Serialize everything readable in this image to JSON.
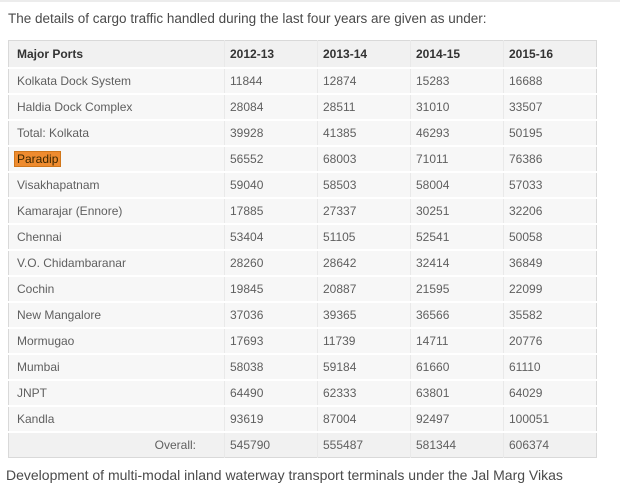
{
  "page": {
    "intro_text": "The details of cargo traffic handled during the last four years are given as under:",
    "outro_text": "Development of multi-modal inland waterway transport terminals under the Jal Marg Vikas"
  },
  "table": {
    "columns": [
      "Major Ports",
      "2012-13",
      "2013-14",
      "2014-15",
      "2015-16"
    ],
    "rows": [
      {
        "port": "Kolkata Dock System",
        "highlighted": false,
        "values": [
          "11844",
          "12874",
          "15283",
          "16688"
        ]
      },
      {
        "port": "Haldia Dock Complex",
        "highlighted": false,
        "values": [
          "28084",
          "28511",
          "31010",
          "33507"
        ]
      },
      {
        "port": "Total: Kolkata",
        "highlighted": false,
        "values": [
          "39928",
          "41385",
          "46293",
          "50195"
        ]
      },
      {
        "port": "Paradip",
        "highlighted": true,
        "values": [
          "56552",
          "68003",
          "71011",
          "76386"
        ]
      },
      {
        "port": "Visakhapatnam",
        "highlighted": false,
        "values": [
          "59040",
          "58503",
          "58004",
          "57033"
        ]
      },
      {
        "port": "Kamarajar (Ennore)",
        "highlighted": false,
        "values": [
          "17885",
          "27337",
          "30251",
          "32206"
        ]
      },
      {
        "port": "Chennai",
        "highlighted": false,
        "values": [
          "53404",
          "51105",
          "52541",
          "50058"
        ]
      },
      {
        "port": "V.O. Chidambaranar",
        "highlighted": false,
        "values": [
          "28260",
          "28642",
          "32414",
          "36849"
        ]
      },
      {
        "port": "Cochin",
        "highlighted": false,
        "values": [
          "19845",
          "20887",
          "21595",
          "22099"
        ]
      },
      {
        "port": "New Mangalore",
        "highlighted": false,
        "values": [
          "37036",
          "39365",
          "36566",
          "35582"
        ]
      },
      {
        "port": "Mormugao",
        "highlighted": false,
        "values": [
          "17693",
          "11739",
          "14711",
          "20776"
        ]
      },
      {
        "port": "Mumbai",
        "highlighted": false,
        "values": [
          "58038",
          "59184",
          "61660",
          "61110"
        ]
      },
      {
        "port": "JNPT",
        "highlighted": false,
        "values": [
          "64490",
          "62333",
          "63801",
          "64029"
        ]
      },
      {
        "port": "Kandla",
        "highlighted": false,
        "values": [
          "93619",
          "87004",
          "92497",
          "100051"
        ]
      }
    ],
    "overall": {
      "label": "Overall:",
      "values": [
        "545790",
        "555487",
        "581344",
        "606374"
      ]
    }
  },
  "colors": {
    "highlight_bg": "#ee8b2f",
    "highlight_text": "#3a2600",
    "highlight_border": "#d0761a",
    "header_row_bg": "#f1f1f1",
    "row_bg": "#f7f7f7",
    "table_border": "#d9d9d9"
  }
}
